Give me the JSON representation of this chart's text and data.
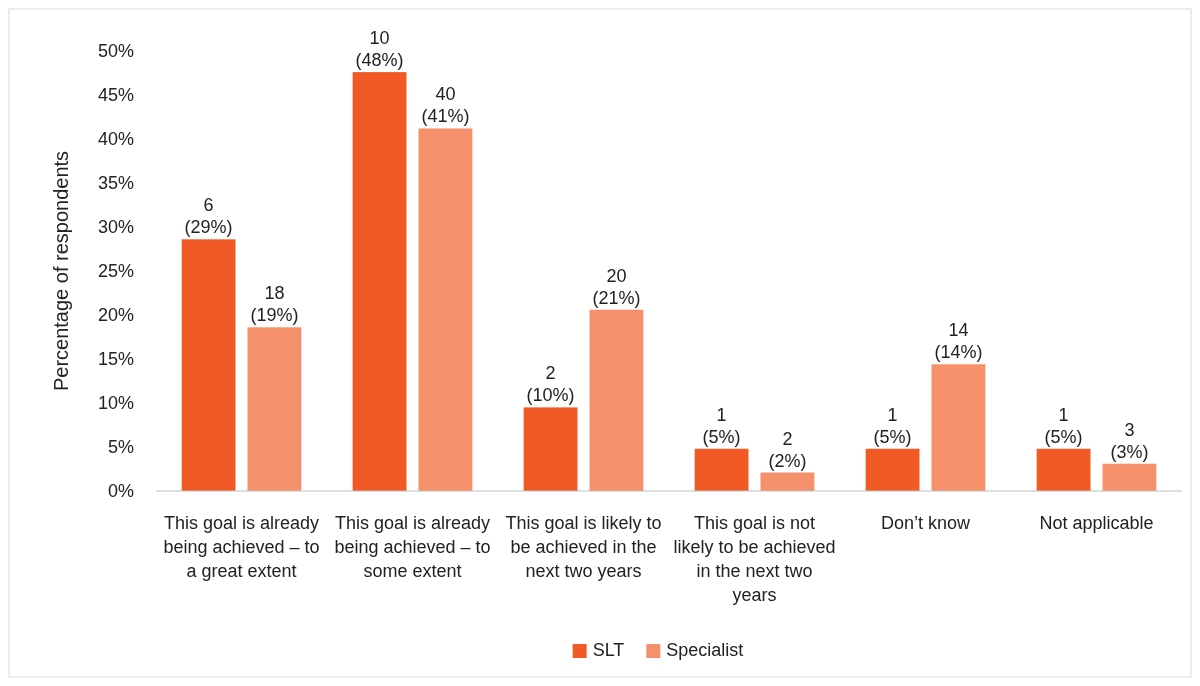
{
  "chart_data": {
    "type": "bar",
    "ylabel": "Percentage of respondents",
    "categories": [
      "This goal is already being achieved – to a great extent",
      "This goal is already being achieved – to some extent",
      "This goal is likely to be achieved in the next two years",
      "This goal is not likely to be achieved in the next two years",
      "Don’t know",
      "Not applicable"
    ],
    "series": [
      {
        "name": "SLT",
        "color": "#f15a24",
        "values": [
          28.6,
          47.6,
          9.5,
          4.8,
          4.8,
          4.8
        ],
        "value_labels": [
          "6\n(29%)",
          "10\n(48%)",
          "2\n(10%)",
          "1\n(5%)",
          "1\n(5%)",
          "1\n(5%)"
        ]
      },
      {
        "name": "Specialist",
        "color": "#f4906a",
        "values": [
          18.6,
          41.2,
          20.6,
          2.1,
          14.4,
          3.1
        ],
        "value_labels": [
          "18\n(19%)",
          "40\n(41%)",
          "20\n(21%)",
          "2\n(2%)",
          "14\n(14%)",
          "3\n(3%)"
        ]
      }
    ],
    "ylim": [
      0,
      50
    ],
    "yticks": [
      {
        "value": 0,
        "label": "0%"
      },
      {
        "value": 5,
        "label": "5%"
      },
      {
        "value": 10,
        "label": "10%"
      },
      {
        "value": 15,
        "label": "15%"
      },
      {
        "value": 20,
        "label": "20%"
      },
      {
        "value": 25,
        "label": "25%"
      },
      {
        "value": 30,
        "label": "30%"
      },
      {
        "value": 35,
        "label": "35%"
      },
      {
        "value": 40,
        "label": "40%"
      },
      {
        "value": 45,
        "label": "45%"
      },
      {
        "value": 50,
        "label": "50%"
      }
    ],
    "grid": false,
    "legend": "bottom"
  }
}
